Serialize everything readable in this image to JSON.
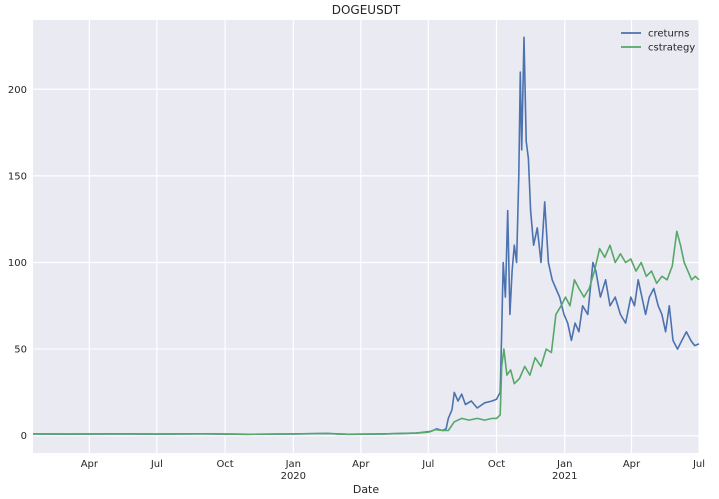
{
  "chart_data": {
    "type": "line",
    "title": "DOGEUSDT",
    "xlabel": "Date",
    "ylabel": "",
    "grid": true,
    "legend_position": "top-right",
    "x_range": [
      "2019-01-15",
      "2021-07-01"
    ],
    "ylim": [
      -10,
      240
    ],
    "y_ticks": [
      0,
      50,
      100,
      150,
      200
    ],
    "x_ticks": [
      {
        "date": "2019-04-01",
        "label": "Apr",
        "sublabel": ""
      },
      {
        "date": "2019-07-01",
        "label": "Jul",
        "sublabel": ""
      },
      {
        "date": "2019-10-01",
        "label": "Oct",
        "sublabel": ""
      },
      {
        "date": "2020-01-01",
        "label": "Jan",
        "sublabel": "2020"
      },
      {
        "date": "2020-04-01",
        "label": "Apr",
        "sublabel": ""
      },
      {
        "date": "2020-07-01",
        "label": "Jul",
        "sublabel": ""
      },
      {
        "date": "2020-10-01",
        "label": "Oct",
        "sublabel": ""
      },
      {
        "date": "2021-01-01",
        "label": "Jan",
        "sublabel": "2021"
      },
      {
        "date": "2021-04-01",
        "label": "Apr",
        "sublabel": ""
      },
      {
        "date": "2021-07-01",
        "label": "Jul",
        "sublabel": ""
      }
    ],
    "series": [
      {
        "name": "creturns",
        "color": "#4c72b0",
        "points": [
          [
            "2019-01-15",
            1
          ],
          [
            "2019-03-01",
            0.9
          ],
          [
            "2019-05-01",
            1.0
          ],
          [
            "2019-07-01",
            0.9
          ],
          [
            "2019-09-01",
            1.1
          ],
          [
            "2019-11-01",
            0.8
          ],
          [
            "2020-01-01",
            1.0
          ],
          [
            "2020-02-15",
            1.3
          ],
          [
            "2020-03-15",
            0.8
          ],
          [
            "2020-05-01",
            1.0
          ],
          [
            "2020-06-15",
            1.5
          ],
          [
            "2020-07-05",
            2.5
          ],
          [
            "2020-07-12",
            4
          ],
          [
            "2020-07-20",
            3
          ],
          [
            "2020-07-25",
            4
          ],
          [
            "2020-07-28",
            10
          ],
          [
            "2020-08-02",
            15
          ],
          [
            "2020-08-05",
            25
          ],
          [
            "2020-08-10",
            20
          ],
          [
            "2020-08-15",
            24
          ],
          [
            "2020-08-20",
            18
          ],
          [
            "2020-08-28",
            20
          ],
          [
            "2020-09-05",
            16
          ],
          [
            "2020-09-15",
            19
          ],
          [
            "2020-09-25",
            20
          ],
          [
            "2020-10-01",
            21
          ],
          [
            "2020-10-06",
            25
          ],
          [
            "2020-10-08",
            60
          ],
          [
            "2020-10-10",
            100
          ],
          [
            "2020-10-13",
            80
          ],
          [
            "2020-10-16",
            130
          ],
          [
            "2020-10-19",
            70
          ],
          [
            "2020-10-22",
            95
          ],
          [
            "2020-10-25",
            110
          ],
          [
            "2020-10-28",
            100
          ],
          [
            "2020-10-31",
            150
          ],
          [
            "2020-11-02",
            210
          ],
          [
            "2020-11-04",
            165
          ],
          [
            "2020-11-07",
            230
          ],
          [
            "2020-11-10",
            170
          ],
          [
            "2020-11-13",
            160
          ],
          [
            "2020-11-16",
            130
          ],
          [
            "2020-11-20",
            110
          ],
          [
            "2020-11-25",
            120
          ],
          [
            "2020-11-30",
            100
          ],
          [
            "2020-12-05",
            135
          ],
          [
            "2020-12-10",
            100
          ],
          [
            "2020-12-15",
            90
          ],
          [
            "2020-12-20",
            85
          ],
          [
            "2020-12-25",
            80
          ],
          [
            "2020-12-31",
            70
          ],
          [
            "2021-01-05",
            65
          ],
          [
            "2021-01-10",
            55
          ],
          [
            "2021-01-15",
            65
          ],
          [
            "2021-01-20",
            60
          ],
          [
            "2021-01-25",
            75
          ],
          [
            "2021-02-01",
            70
          ],
          [
            "2021-02-08",
            100
          ],
          [
            "2021-02-12",
            95
          ],
          [
            "2021-02-18",
            80
          ],
          [
            "2021-02-25",
            90
          ],
          [
            "2021-03-03",
            75
          ],
          [
            "2021-03-10",
            80
          ],
          [
            "2021-03-17",
            70
          ],
          [
            "2021-03-24",
            65
          ],
          [
            "2021-03-31",
            80
          ],
          [
            "2021-04-05",
            75
          ],
          [
            "2021-04-10",
            90
          ],
          [
            "2021-04-15",
            80
          ],
          [
            "2021-04-20",
            70
          ],
          [
            "2021-04-25",
            80
          ],
          [
            "2021-05-01",
            85
          ],
          [
            "2021-05-07",
            75
          ],
          [
            "2021-05-12",
            70
          ],
          [
            "2021-05-17",
            60
          ],
          [
            "2021-05-22",
            75
          ],
          [
            "2021-05-27",
            55
          ],
          [
            "2021-06-02",
            50
          ],
          [
            "2021-06-08",
            55
          ],
          [
            "2021-06-14",
            60
          ],
          [
            "2021-06-20",
            55
          ],
          [
            "2021-06-25",
            52
          ],
          [
            "2021-07-01",
            53
          ]
        ]
      },
      {
        "name": "cstrategy",
        "color": "#55a868",
        "points": [
          [
            "2019-01-15",
            1
          ],
          [
            "2019-03-01",
            0.9
          ],
          [
            "2019-05-01",
            1.0
          ],
          [
            "2019-07-01",
            0.9
          ],
          [
            "2019-09-01",
            1.1
          ],
          [
            "2019-11-01",
            0.8
          ],
          [
            "2020-01-01",
            1.0
          ],
          [
            "2020-02-15",
            1.2
          ],
          [
            "2020-03-15",
            0.8
          ],
          [
            "2020-05-01",
            1.0
          ],
          [
            "2020-06-15",
            1.5
          ],
          [
            "2020-07-01",
            2
          ],
          [
            "2020-07-10",
            3.5
          ],
          [
            "2020-07-20",
            3
          ],
          [
            "2020-07-28",
            3
          ],
          [
            "2020-08-05",
            8
          ],
          [
            "2020-08-15",
            10
          ],
          [
            "2020-08-25",
            9
          ],
          [
            "2020-09-05",
            10
          ],
          [
            "2020-09-15",
            9
          ],
          [
            "2020-09-25",
            10
          ],
          [
            "2020-10-01",
            10
          ],
          [
            "2020-10-06",
            12
          ],
          [
            "2020-10-08",
            40
          ],
          [
            "2020-10-11",
            50
          ],
          [
            "2020-10-15",
            35
          ],
          [
            "2020-10-20",
            38
          ],
          [
            "2020-10-25",
            30
          ],
          [
            "2020-11-01",
            33
          ],
          [
            "2020-11-08",
            40
          ],
          [
            "2020-11-15",
            35
          ],
          [
            "2020-11-22",
            45
          ],
          [
            "2020-11-30",
            40
          ],
          [
            "2020-12-07",
            50
          ],
          [
            "2020-12-14",
            48
          ],
          [
            "2020-12-20",
            70
          ],
          [
            "2020-12-27",
            75
          ],
          [
            "2021-01-02",
            80
          ],
          [
            "2021-01-08",
            75
          ],
          [
            "2021-01-14",
            90
          ],
          [
            "2021-01-20",
            85
          ],
          [
            "2021-01-27",
            80
          ],
          [
            "2021-02-03",
            85
          ],
          [
            "2021-02-10",
            95
          ],
          [
            "2021-02-17",
            108
          ],
          [
            "2021-02-24",
            103
          ],
          [
            "2021-03-03",
            110
          ],
          [
            "2021-03-10",
            100
          ],
          [
            "2021-03-17",
            105
          ],
          [
            "2021-03-24",
            100
          ],
          [
            "2021-03-31",
            102
          ],
          [
            "2021-04-07",
            95
          ],
          [
            "2021-04-14",
            100
          ],
          [
            "2021-04-21",
            92
          ],
          [
            "2021-04-28",
            95
          ],
          [
            "2021-05-05",
            88
          ],
          [
            "2021-05-12",
            92
          ],
          [
            "2021-05-19",
            90
          ],
          [
            "2021-05-26",
            98
          ],
          [
            "2021-06-01",
            118
          ],
          [
            "2021-06-06",
            110
          ],
          [
            "2021-06-11",
            100
          ],
          [
            "2021-06-16",
            95
          ],
          [
            "2021-06-21",
            90
          ],
          [
            "2021-06-26",
            92
          ],
          [
            "2021-07-01",
            90
          ]
        ]
      }
    ]
  }
}
